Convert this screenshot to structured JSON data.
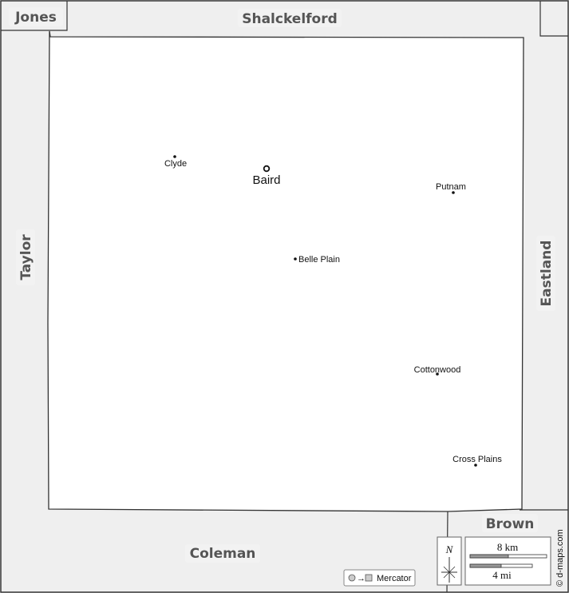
{
  "map": {
    "colors": {
      "neighbor_fill": "#efefef",
      "main_fill": "#ffffff",
      "border": "#333333",
      "label": "#555555"
    },
    "neighbors": {
      "jones": "Jones",
      "shackelford": "Shalckelford",
      "taylor": "Taylor",
      "eastland": "Eastland",
      "coleman": "Coleman",
      "brown": "Brown"
    },
    "places": {
      "clyde": "Clyde",
      "baird": "Baird",
      "putnam": "Putnam",
      "belle_plain": "Belle Plain",
      "cottonwood": "Cottonwood",
      "cross_plains": "Cross Plains"
    },
    "legend": {
      "north": "N",
      "scale_km": "8 km",
      "scale_mi": "4 mi",
      "projection": "Mercator",
      "credit": "© d-maps.com"
    }
  }
}
